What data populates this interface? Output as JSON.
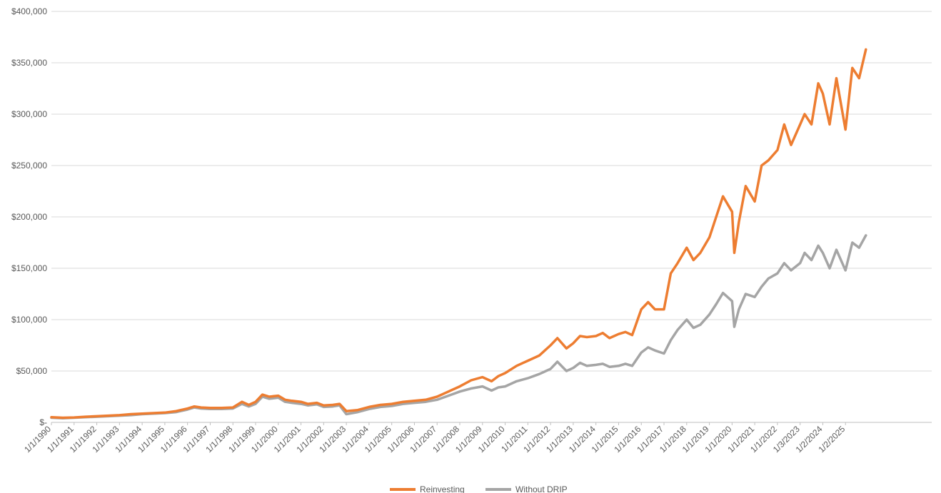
{
  "chart_data": {
    "type": "line",
    "title": "",
    "xlabel": "",
    "ylabel": "",
    "ylim": [
      0,
      400000
    ],
    "yticks": [
      0,
      50000,
      100000,
      150000,
      200000,
      250000,
      300000,
      350000,
      400000
    ],
    "ytick_labels": [
      "$-",
      "$50,000",
      "$100,000",
      "$150,000",
      "$200,000",
      "$250,000",
      "$300,000",
      "$350,000",
      "$400,000"
    ],
    "xtick_labels": [
      "1/1/1990",
      "1/1/1991",
      "1/1/1992",
      "1/1/1993",
      "1/1/1994",
      "1/1/1995",
      "1/1/1996",
      "1/1/1997",
      "1/1/1998",
      "1/1/1999",
      "1/1/2000",
      "1/1/2001",
      "1/1/2002",
      "1/1/2003",
      "1/1/2004",
      "1/1/2005",
      "1/1/2006",
      "1/1/2007",
      "1/1/2008",
      "1/1/2009",
      "1/1/2010",
      "1/1/2011",
      "1/1/2012",
      "1/1/2013",
      "1/1/2014",
      "1/1/2015",
      "1/1/2016",
      "1/1/2017",
      "1/1/2018",
      "1/1/2019",
      "1/1/2020",
      "1/1/2021",
      "1/1/2022",
      "1/3/2023",
      "1/2/2024",
      "1/2/2025"
    ],
    "x_range": [
      1990.0,
      2028.8
    ],
    "grid": "horizontal",
    "legend_position": "bottom",
    "series": [
      {
        "name": "Reinvesting",
        "color": "#ED7D31",
        "x": [
          1990.0,
          1990.5,
          1991.0,
          1991.5,
          1992.0,
          1992.5,
          1993.0,
          1993.5,
          1994.0,
          1994.5,
          1995.0,
          1995.5,
          1996.0,
          1996.3,
          1996.6,
          1997.0,
          1997.5,
          1998.0,
          1998.4,
          1998.7,
          1999.0,
          1999.3,
          1999.6,
          2000.0,
          2000.3,
          2000.6,
          2001.0,
          2001.3,
          2001.7,
          2002.0,
          2002.4,
          2002.7,
          2003.0,
          2003.5,
          2004.0,
          2004.5,
          2005.0,
          2005.5,
          2006.0,
          2006.5,
          2007.0,
          2007.5,
          2008.0,
          2008.5,
          2009.0,
          2009.4,
          2009.7,
          2010.0,
          2010.5,
          2011.0,
          2011.5,
          2012.0,
          2012.3,
          2012.7,
          2013.0,
          2013.3,
          2013.6,
          2014.0,
          2014.3,
          2014.6,
          2015.0,
          2015.3,
          2015.6,
          2016.0,
          2016.3,
          2016.6,
          2017.0,
          2017.3,
          2017.6,
          2018.0,
          2018.3,
          2018.6,
          2019.0,
          2019.3,
          2019.6,
          2020.0,
          2020.1,
          2020.3,
          2020.6,
          2021.0,
          2021.3,
          2021.6,
          2022.0,
          2022.3,
          2022.6,
          2023.0,
          2023.2,
          2023.5,
          2023.8,
          2024.0,
          2024.3,
          2024.6,
          2025.0,
          2025.3,
          2025.6,
          2025.9
        ],
        "values": [
          5000,
          4500,
          4800,
          5500,
          6000,
          6500,
          7000,
          8000,
          8500,
          9000,
          9500,
          11000,
          13500,
          15500,
          14500,
          14000,
          14000,
          14500,
          20000,
          17000,
          20000,
          27000,
          25000,
          26000,
          22000,
          21000,
          20000,
          18000,
          19000,
          16500,
          17000,
          18000,
          11000,
          12000,
          15000,
          17000,
          18000,
          20000,
          21000,
          22000,
          25000,
          30000,
          35000,
          41000,
          44000,
          40000,
          45000,
          48000,
          55000,
          60000,
          65000,
          75000,
          82000,
          72000,
          77000,
          84000,
          83000,
          84000,
          87000,
          82000,
          86000,
          88000,
          85000,
          110000,
          117000,
          110000,
          110000,
          145000,
          155000,
          170000,
          158000,
          165000,
          180000,
          200000,
          220000,
          205000,
          165000,
          195000,
          230000,
          215000,
          250000,
          255000,
          265000,
          290000,
          270000,
          290000,
          300000,
          290000,
          330000,
          320000,
          290000,
          335000,
          285000,
          345000,
          335000,
          363000
        ]
      },
      {
        "name": "Without DRIP",
        "color": "#A5A5A5",
        "x": [
          1990.0,
          1990.5,
          1991.0,
          1991.5,
          1992.0,
          1992.5,
          1993.0,
          1993.5,
          1994.0,
          1994.5,
          1995.0,
          1995.5,
          1996.0,
          1996.3,
          1996.6,
          1997.0,
          1997.5,
          1998.0,
          1998.4,
          1998.7,
          1999.0,
          1999.3,
          1999.6,
          2000.0,
          2000.3,
          2000.6,
          2001.0,
          2001.3,
          2001.7,
          2002.0,
          2002.4,
          2002.7,
          2003.0,
          2003.5,
          2004.0,
          2004.5,
          2005.0,
          2005.5,
          2006.0,
          2006.5,
          2007.0,
          2007.5,
          2008.0,
          2008.5,
          2009.0,
          2009.4,
          2009.7,
          2010.0,
          2010.5,
          2011.0,
          2011.5,
          2012.0,
          2012.3,
          2012.7,
          2013.0,
          2013.3,
          2013.6,
          2014.0,
          2014.3,
          2014.6,
          2015.0,
          2015.3,
          2015.6,
          2016.0,
          2016.3,
          2016.6,
          2017.0,
          2017.3,
          2017.6,
          2018.0,
          2018.3,
          2018.6,
          2019.0,
          2019.3,
          2019.6,
          2020.0,
          2020.1,
          2020.3,
          2020.6,
          2021.0,
          2021.3,
          2021.6,
          2022.0,
          2022.3,
          2022.6,
          2023.0,
          2023.2,
          2023.5,
          2023.8,
          2024.0,
          2024.3,
          2024.6,
          2025.0,
          2025.3,
          2025.6,
          2025.9
        ],
        "values": [
          4500,
          4000,
          4500,
          5000,
          5500,
          6000,
          6500,
          7000,
          8000,
          8500,
          9000,
          10000,
          12500,
          14500,
          13500,
          13000,
          13000,
          13500,
          18000,
          15500,
          18000,
          25000,
          23000,
          24000,
          20000,
          19000,
          18000,
          16500,
          17500,
          15000,
          15500,
          16500,
          8000,
          10000,
          13000,
          15000,
          16000,
          18000,
          19000,
          20000,
          22000,
          26000,
          30000,
          33000,
          35000,
          31000,
          34000,
          35000,
          40000,
          43000,
          47000,
          52000,
          59000,
          50000,
          53000,
          58000,
          55000,
          56000,
          57000,
          54000,
          55000,
          57000,
          55000,
          68000,
          73000,
          70000,
          67000,
          80000,
          90000,
          100000,
          92000,
          95000,
          105000,
          115000,
          126000,
          118000,
          93000,
          110000,
          125000,
          122000,
          132000,
          140000,
          145000,
          155000,
          148000,
          155000,
          165000,
          158000,
          172000,
          165000,
          150000,
          168000,
          148000,
          175000,
          170000,
          182000
        ]
      }
    ]
  }
}
